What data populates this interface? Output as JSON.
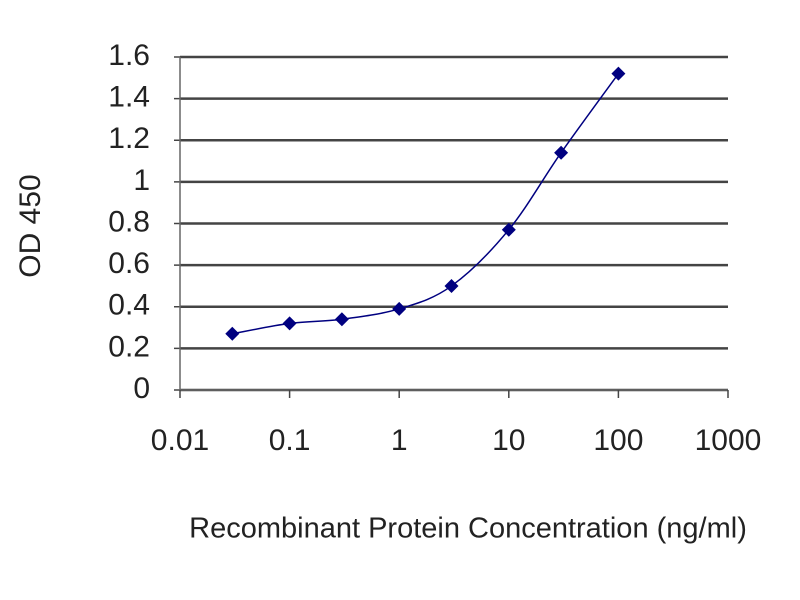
{
  "chart_data": {
    "type": "line",
    "xlabel": "Recombinant Protein Concentration (ng/ml)",
    "ylabel": "OD 450",
    "x": [
      0.03,
      0.1,
      0.3,
      1,
      3,
      10,
      30,
      100
    ],
    "series": [
      {
        "color": "#000080",
        "values": [
          0.27,
          0.32,
          0.34,
          0.39,
          0.5,
          0.77,
          1.14,
          1.52
        ]
      }
    ],
    "xscale": "log",
    "xlim": [
      0.01,
      1000
    ],
    "xticks": [
      0.01,
      0.1,
      1,
      10,
      100,
      1000
    ],
    "ylim": [
      0,
      1.6
    ],
    "yticks": [
      0,
      0.2,
      0.4,
      0.6,
      0.8,
      1,
      1.2,
      1.4,
      1.6
    ],
    "grid": true
  }
}
